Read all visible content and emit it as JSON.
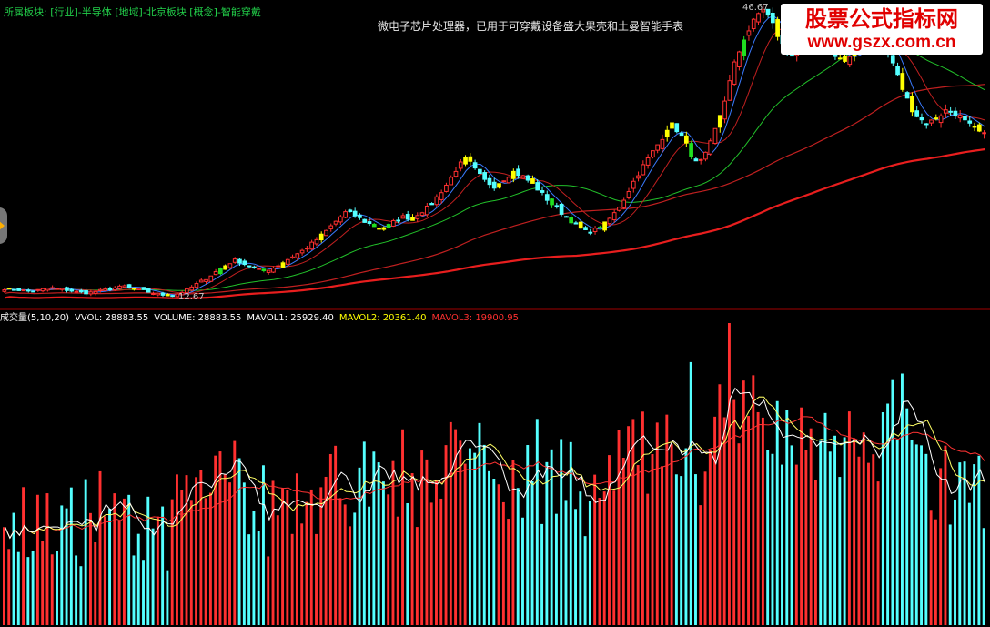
{
  "header": {
    "sector_info": "所属板块: [行业]-半导体 [地域]-北京板块 [概念]-智能穿戴",
    "annotation": "微电子芯片处理器，已用于可穿戴设备盛大果壳和土曼智能手表"
  },
  "watermark": {
    "line1": "股票公式指标网",
    "line2": "www.gszx.com.cn"
  },
  "price_panel": {
    "high_label": "46.67",
    "low_label": "12.67"
  },
  "volume_panel": {
    "title": "成交量(5,10,20)",
    "vvol": "VVOL: 28883.55",
    "volume": "VOLUME: 28883.55",
    "mavol1": "MAVOL1: 25929.40",
    "mavol2": "MAVOL2: 20361.40",
    "mavol3": "MAVOL3: 19900.95"
  },
  "colors": {
    "up": "#ff3030",
    "down": "#54ffff",
    "doji": "#ffff00",
    "green_candle": "#20e020",
    "ma_short": "#3a7bff",
    "ma_mid": "#c02020",
    "ma_long": "#e81e1e",
    "ma_green": "#22c02a",
    "vol_ma1": "#ffffff",
    "vol_ma2": "#ffff66",
    "vol_ma3": "#ff3333",
    "text_white": "#ffffff",
    "text_yellow": "#ffff00",
    "text_pink": "#ff33ff",
    "text_red": "#ff3030"
  },
  "chart_data": [
    {
      "type": "candlestick",
      "title": "",
      "y_max_label": 46.67,
      "y_min_label": 12.67,
      "close_path": [
        13.5,
        13.4,
        13.3,
        13.2,
        13.4,
        13.6,
        13.5,
        13.3,
        13.1,
        13.0,
        13.2,
        13.4,
        13.6,
        13.8,
        13.5,
        13.3,
        13.0,
        12.8,
        12.67,
        13.0,
        13.5,
        14.2,
        14.8,
        15.6,
        16.3,
        16.9,
        16.4,
        15.9,
        15.6,
        15.9,
        16.5,
        17.2,
        17.8,
        18.6,
        19.5,
        20.5,
        21.6,
        22.6,
        22.1,
        21.4,
        20.9,
        20.5,
        21.3,
        22.0,
        21.8,
        22.5,
        23.2,
        24.6,
        26.0,
        27.8,
        28.9,
        27.4,
        26.2,
        25.6,
        26.4,
        27.3,
        26.8,
        26.0,
        24.9,
        23.7,
        22.7,
        21.8,
        20.8,
        20.2,
        20.5,
        21.2,
        22.4,
        24.0,
        26.0,
        27.8,
        29.4,
        31.0,
        33.0,
        32.0,
        30.0,
        28.0,
        29.5,
        32.5,
        36.0,
        40.0,
        43.0,
        44.8,
        46.67,
        45.0,
        42.5,
        41.0,
        41.8,
        42.6,
        43.5,
        42.6,
        41.0,
        40.2,
        41.2,
        42.5,
        43.7,
        43.0,
        40.5,
        37.5,
        35.0,
        33.5,
        33.0,
        33.8,
        34.6,
        34.2,
        33.1,
        32.3,
        31.6
      ]
    },
    {
      "type": "bar",
      "title": "成交量(5,10,20)",
      "vvol": 28883.55,
      "mavol1": 25929.4,
      "mavol2": 20361.4,
      "mavol3": 19900.95
    }
  ]
}
